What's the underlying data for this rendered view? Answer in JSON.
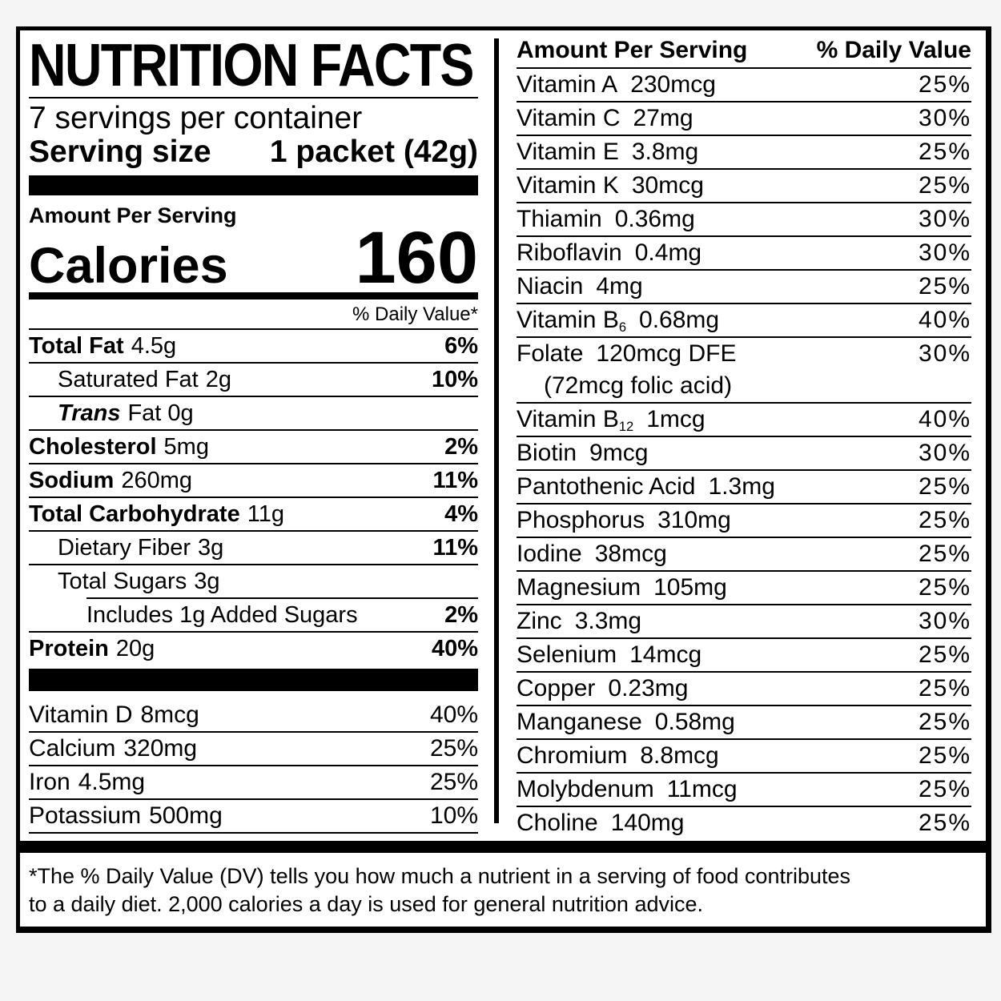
{
  "label": {
    "title": "NUTRITION FACTS",
    "servings_per_container": "7 servings per container",
    "serving_size": {
      "label": "Serving size",
      "value": "1 packet (42g)"
    },
    "amount_per_serving": "Amount Per Serving",
    "calories": {
      "label": "Calories",
      "value": "160"
    },
    "daily_value_header": "% Daily Value*",
    "main_nutrients": [
      {
        "name": "Total Fat",
        "bold": true,
        "amount": "4.5g",
        "dv": "6%",
        "indent": 0
      },
      {
        "name": "Saturated Fat",
        "amount": "2g",
        "dv": "10%",
        "indent": 1
      },
      {
        "name": "Trans",
        "bold": true,
        "italic": true,
        "amount": "Fat 0g",
        "dv": "",
        "indent": 1
      },
      {
        "name": "Cholesterol",
        "bold": true,
        "amount": "5mg",
        "dv": "2%",
        "indent": 0
      },
      {
        "name": "Sodium",
        "bold": true,
        "amount": "260mg",
        "dv": "11%",
        "indent": 0
      },
      {
        "name": "Total Carbohydrate",
        "bold": true,
        "amount": "11g",
        "dv": "4%",
        "indent": 0
      },
      {
        "name": "Dietary Fiber",
        "amount": "3g",
        "dv": "11%",
        "indent": 1
      },
      {
        "name": "Total Sugars",
        "amount": "3g",
        "dv": "",
        "indent": 1,
        "sep_indent": true
      },
      {
        "name": "Includes 1g Added Sugars",
        "amount": "",
        "dv": "2%",
        "indent": 2
      },
      {
        "name": "Protein",
        "bold": true,
        "amount": "20g",
        "dv": "40%",
        "indent": 0,
        "no_sep": true
      }
    ],
    "vitamins_minerals": [
      {
        "name": "Vitamin D",
        "amount": "8mcg",
        "dv": "40%"
      },
      {
        "name": "Calcium",
        "amount": "320mg",
        "dv": "25%"
      },
      {
        "name": "Iron",
        "amount": "4.5mg",
        "dv": "25%"
      },
      {
        "name": "Potassium",
        "amount": "500mg",
        "dv": "10%"
      }
    ],
    "right_panel": {
      "header_left": "Amount Per Serving",
      "header_right": "% Daily Value",
      "rows": [
        {
          "name": "Vitamin A",
          "amount": "230mcg",
          "dv": "25%"
        },
        {
          "name": "Vitamin C",
          "amount": "27mg",
          "dv": "30%"
        },
        {
          "name": "Vitamin E",
          "amount": "3.8mg",
          "dv": "25%"
        },
        {
          "name": "Vitamin K",
          "amount": "30mcg",
          "dv": "25%"
        },
        {
          "name": "Thiamin",
          "amount": "0.36mg",
          "dv": "30%"
        },
        {
          "name": "Riboflavin",
          "amount": "0.4mg",
          "dv": "30%"
        },
        {
          "name": "Niacin",
          "amount": "4mg",
          "dv": "25%"
        },
        {
          "name": "Vitamin B",
          "sub": "6",
          "amount": "0.68mg",
          "dv": "40%"
        },
        {
          "name": "Folate",
          "amount": "120mcg DFE",
          "dv": "30%",
          "note": "(72mcg folic acid)"
        },
        {
          "name": "Vitamin B",
          "sub": "12",
          "amount": "1mcg",
          "dv": "40%"
        },
        {
          "name": "Biotin",
          "amount": "9mcg",
          "dv": "30%"
        },
        {
          "name": "Pantothenic Acid",
          "amount": "1.3mg",
          "dv": "25%"
        },
        {
          "name": "Phosphorus",
          "amount": "310mg",
          "dv": "25%"
        },
        {
          "name": "Iodine",
          "amount": "38mcg",
          "dv": "25%"
        },
        {
          "name": "Magnesium",
          "amount": "105mg",
          "dv": "25%"
        },
        {
          "name": "Zinc",
          "amount": "3.3mg",
          "dv": "30%"
        },
        {
          "name": "Selenium",
          "amount": "14mcg",
          "dv": "25%"
        },
        {
          "name": "Copper",
          "amount": "0.23mg",
          "dv": "25%"
        },
        {
          "name": "Manganese",
          "amount": "0.58mg",
          "dv": "25%"
        },
        {
          "name": "Chromium",
          "amount": "8.8mcg",
          "dv": "25%"
        },
        {
          "name": "Molybdenum",
          "amount": "11mcg",
          "dv": "25%"
        },
        {
          "name": "Choline",
          "amount": "140mg",
          "dv": "25%",
          "no_sep": true
        }
      ]
    },
    "footnote_lines": [
      "*The % Daily Value (DV) tells you how much a nutrient in a serving of food contributes",
      "to a daily diet. 2,000 calories a day is used for general nutrition advice."
    ],
    "colors": {
      "ink": "#000000",
      "paper": "#ffffff",
      "page_bg": "#f5f5f5"
    }
  }
}
